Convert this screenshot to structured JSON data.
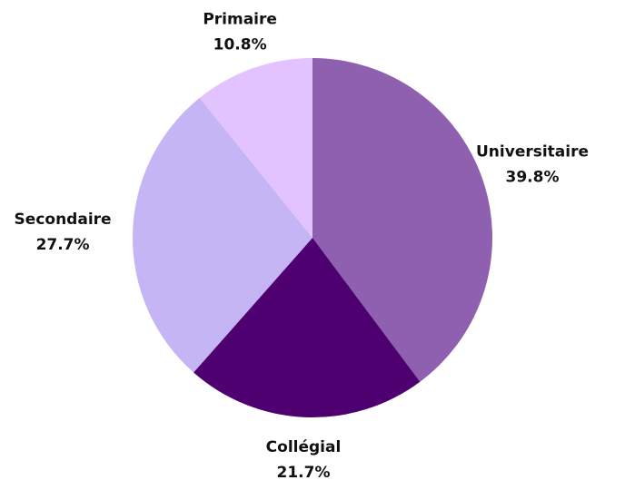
{
  "chart_data": {
    "type": "pie",
    "categories": [
      "Universitaire",
      "Collégial",
      "Secondaire",
      "Primaire"
    ],
    "values": [
      39.8,
      21.7,
      27.7,
      10.8
    ],
    "value_labels": [
      "39.8%",
      "21.7%",
      "27.7%",
      "10.8%"
    ],
    "colors": [
      "#9060b0",
      "#4f0070",
      "#c5b5f5",
      "#e3c3ff"
    ]
  }
}
